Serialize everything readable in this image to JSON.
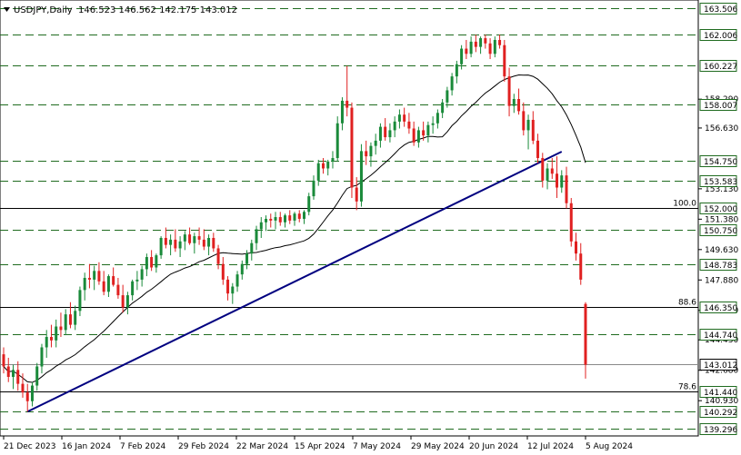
{
  "header": {
    "symbol": "USDJPY,Daily",
    "ohlc": "146.523 146.562 142.175 143.012",
    "dropdown_icon": "triangle-down-icon"
  },
  "colors": {
    "up": "#1a8a3a",
    "down": "#e02020",
    "trendline": "#000080",
    "ma": "#000000",
    "grid_dash": "#1f6b1f",
    "fib": "#000000",
    "tag_bg": "#ffffff",
    "tag_border": "#1f6b1f"
  },
  "chart_data": {
    "type": "candlestick",
    "title": "USDJPY,Daily",
    "ylim": [
      138.9,
      164.0
    ],
    "x_ticks": [
      "21 Dec 2023",
      "16 Jan 2024",
      "7 Feb 2024",
      "29 Feb 2024",
      "22 Mar 2024",
      "15 Apr 2024",
      "7 May 2024",
      "29 May 2024",
      "20 Jun 2024",
      "12 Jul 2024",
      "5 Aug 2024"
    ],
    "y_ticks": [
      "158.290",
      "156.630",
      "153.130",
      "151.380",
      "149.630",
      "147.880",
      "146.130",
      "144.430",
      "142.680",
      "140.930"
    ],
    "levels": [
      {
        "value": 163.506,
        "label": "163.506"
      },
      {
        "value": 162.006,
        "label": "162.006"
      },
      {
        "value": 160.227,
        "label": "160.227"
      },
      {
        "value": 158.007,
        "label": "158.007"
      },
      {
        "value": 154.75,
        "label": "154.750"
      },
      {
        "value": 153.583,
        "label": "153.583"
      },
      {
        "value": 150.75,
        "label": "150.750"
      },
      {
        "value": 148.783,
        "label": "148.783"
      },
      {
        "value": 144.74,
        "label": "144.740"
      },
      {
        "value": 141.44,
        "label": "141.440"
      },
      {
        "value": 140.292,
        "label": "140.292"
      },
      {
        "value": 139.296,
        "label": "139.296"
      }
    ],
    "fib_levels": [
      {
        "value": 152.0,
        "tag": "152.000",
        "pct": "100.0"
      },
      {
        "value": 146.35,
        "tag": "146.350",
        "pct": "88.6"
      },
      {
        "value": 141.44,
        "tag": "",
        "pct": "78.6"
      }
    ],
    "current_price": {
      "value": 143.012,
      "label": "143.012"
    },
    "candles": [
      [
        143.6,
        144.0,
        142.5,
        142.9
      ],
      [
        142.9,
        143.4,
        142.0,
        142.3
      ],
      [
        142.3,
        143.0,
        141.6,
        142.7
      ],
      [
        142.7,
        143.2,
        141.5,
        141.9
      ],
      [
        141.9,
        142.5,
        141.1,
        141.4
      ],
      [
        141.4,
        141.9,
        140.3,
        140.9
      ],
      [
        140.9,
        142.0,
        140.6,
        141.8
      ],
      [
        141.8,
        143.1,
        141.5,
        142.9
      ],
      [
        142.9,
        144.2,
        142.5,
        144.0
      ],
      [
        144.0,
        145.0,
        143.4,
        144.6
      ],
      [
        144.6,
        145.3,
        144.0,
        144.4
      ],
      [
        144.4,
        145.6,
        144.0,
        145.2
      ],
      [
        145.2,
        146.0,
        144.6,
        145.0
      ],
      [
        145.0,
        146.2,
        144.7,
        145.9
      ],
      [
        145.9,
        146.6,
        145.1,
        145.3
      ],
      [
        145.3,
        146.4,
        145.0,
        146.1
      ],
      [
        146.1,
        147.5,
        145.8,
        147.3
      ],
      [
        147.3,
        148.3,
        146.7,
        148.0
      ],
      [
        148.0,
        148.8,
        147.4,
        147.9
      ],
      [
        147.9,
        148.7,
        147.3,
        148.4
      ],
      [
        148.4,
        148.9,
        147.6,
        147.8
      ],
      [
        147.8,
        148.4,
        147.0,
        147.2
      ],
      [
        147.2,
        148.2,
        146.9,
        148.1
      ],
      [
        148.1,
        148.6,
        147.5,
        147.6
      ],
      [
        147.6,
        148.0,
        146.8,
        147.0
      ],
      [
        147.0,
        147.6,
        146.0,
        146.3
      ],
      [
        146.3,
        147.2,
        145.9,
        147.0
      ],
      [
        147.0,
        147.9,
        146.7,
        147.8
      ],
      [
        147.8,
        148.4,
        147.3,
        147.9
      ],
      [
        147.9,
        148.7,
        147.5,
        148.5
      ],
      [
        148.5,
        149.4,
        148.1,
        149.2
      ],
      [
        149.2,
        149.6,
        148.4,
        148.6
      ],
      [
        148.6,
        149.4,
        148.3,
        149.3
      ],
      [
        149.3,
        150.4,
        149.1,
        150.3
      ],
      [
        150.3,
        150.9,
        149.7,
        149.9
      ],
      [
        149.9,
        150.5,
        149.3,
        150.2
      ],
      [
        150.2,
        150.8,
        149.5,
        149.7
      ],
      [
        149.7,
        150.4,
        149.2,
        150.1
      ],
      [
        150.1,
        150.7,
        149.6,
        150.5
      ],
      [
        150.5,
        150.9,
        149.9,
        150.0
      ],
      [
        150.0,
        150.6,
        149.4,
        150.4
      ],
      [
        150.4,
        150.9,
        149.9,
        150.2
      ],
      [
        150.2,
        150.8,
        149.6,
        149.8
      ],
      [
        149.8,
        150.5,
        149.3,
        150.3
      ],
      [
        150.3,
        150.6,
        149.5,
        149.7
      ],
      [
        149.7,
        149.9,
        148.5,
        148.8
      ],
      [
        148.8,
        149.2,
        147.6,
        147.9
      ],
      [
        147.9,
        148.1,
        146.7,
        147.1
      ],
      [
        147.1,
        147.7,
        146.5,
        147.5
      ],
      [
        147.5,
        148.4,
        147.2,
        148.2
      ],
      [
        148.2,
        149.0,
        147.9,
        148.8
      ],
      [
        148.8,
        149.6,
        148.5,
        149.4
      ],
      [
        149.4,
        150.2,
        149.0,
        150.0
      ],
      [
        150.0,
        151.0,
        149.6,
        150.8
      ],
      [
        150.8,
        151.5,
        150.3,
        151.2
      ],
      [
        151.2,
        151.6,
        150.7,
        151.4
      ],
      [
        151.4,
        151.7,
        150.9,
        151.3
      ],
      [
        151.3,
        151.8,
        150.8,
        151.5
      ],
      [
        151.5,
        151.8,
        151.0,
        151.2
      ],
      [
        151.2,
        151.7,
        150.9,
        151.6
      ],
      [
        151.6,
        151.9,
        151.1,
        151.3
      ],
      [
        151.3,
        151.8,
        151.0,
        151.7
      ],
      [
        151.7,
        151.9,
        151.2,
        151.4
      ],
      [
        151.4,
        151.9,
        151.1,
        151.8
      ],
      [
        151.8,
        152.9,
        151.6,
        152.7
      ],
      [
        152.7,
        153.9,
        152.5,
        153.6
      ],
      [
        153.6,
        154.8,
        153.3,
        154.6
      ],
      [
        154.6,
        154.9,
        154.0,
        154.3
      ],
      [
        154.3,
        154.8,
        153.9,
        154.7
      ],
      [
        154.7,
        155.3,
        154.3,
        154.9
      ],
      [
        154.9,
        157.3,
        154.7,
        156.9
      ],
      [
        156.9,
        158.4,
        156.5,
        158.2
      ],
      [
        158.2,
        160.2,
        157.3,
        157.8
      ],
      [
        157.8,
        158.1,
        152.6,
        153.2
      ],
      [
        153.2,
        153.8,
        151.9,
        152.4
      ],
      [
        152.4,
        155.7,
        152.1,
        155.3
      ],
      [
        155.3,
        155.9,
        154.5,
        155.0
      ],
      [
        155.0,
        155.8,
        154.4,
        155.6
      ],
      [
        155.6,
        156.3,
        155.1,
        155.9
      ],
      [
        155.9,
        156.9,
        155.5,
        156.7
      ],
      [
        156.7,
        157.2,
        155.9,
        156.1
      ],
      [
        156.1,
        156.9,
        155.8,
        156.5
      ],
      [
        156.5,
        157.3,
        156.1,
        157.0
      ],
      [
        157.0,
        157.7,
        156.6,
        157.4
      ],
      [
        157.4,
        157.8,
        156.7,
        157.0
      ],
      [
        157.0,
        157.5,
        156.3,
        156.6
      ],
      [
        156.6,
        157.0,
        155.6,
        155.8
      ],
      [
        155.8,
        156.7,
        155.5,
        156.5
      ],
      [
        156.5,
        157.0,
        155.9,
        156.2
      ],
      [
        156.2,
        157.0,
        155.8,
        156.8
      ],
      [
        156.8,
        157.3,
        156.3,
        156.9
      ],
      [
        156.9,
        157.7,
        156.6,
        157.5
      ],
      [
        157.5,
        158.3,
        157.2,
        158.1
      ],
      [
        158.1,
        159.0,
        157.8,
        158.8
      ],
      [
        158.8,
        159.8,
        158.5,
        159.6
      ],
      [
        159.6,
        160.5,
        159.2,
        160.3
      ],
      [
        160.3,
        161.4,
        160.0,
        161.2
      ],
      [
        161.2,
        161.7,
        160.6,
        160.9
      ],
      [
        160.9,
        161.9,
        160.7,
        161.6
      ],
      [
        161.6,
        162.0,
        161.0,
        161.3
      ],
      [
        161.3,
        161.9,
        160.9,
        161.8
      ],
      [
        161.8,
        162.0,
        161.2,
        161.5
      ],
      [
        161.5,
        161.8,
        160.6,
        160.9
      ],
      [
        160.9,
        161.9,
        160.7,
        161.7
      ],
      [
        161.7,
        162.0,
        161.2,
        161.4
      ],
      [
        161.4,
        161.7,
        159.3,
        159.6
      ],
      [
        159.6,
        160.1,
        157.3,
        157.9
      ],
      [
        157.9,
        158.6,
        157.5,
        158.3
      ],
      [
        158.3,
        158.9,
        157.4,
        157.6
      ],
      [
        157.6,
        158.1,
        156.2,
        156.5
      ],
      [
        156.5,
        157.4,
        155.4,
        157.1
      ],
      [
        157.1,
        157.6,
        155.7,
        155.9
      ],
      [
        155.9,
        156.3,
        154.6,
        154.9
      ],
      [
        154.9,
        155.2,
        153.2,
        153.6
      ],
      [
        153.6,
        154.6,
        153.1,
        154.3
      ],
      [
        154.3,
        154.9,
        153.7,
        154.0
      ],
      [
        154.0,
        155.0,
        152.6,
        153.2
      ],
      [
        153.2,
        154.2,
        152.9,
        153.9
      ],
      [
        153.9,
        154.4,
        152.0,
        152.3
      ],
      [
        152.3,
        152.6,
        149.8,
        150.1
      ],
      [
        150.1,
        150.6,
        149.0,
        149.4
      ],
      [
        149.4,
        150.0,
        147.6,
        147.9
      ],
      [
        146.5,
        146.6,
        142.2,
        143.0
      ]
    ]
  }
}
